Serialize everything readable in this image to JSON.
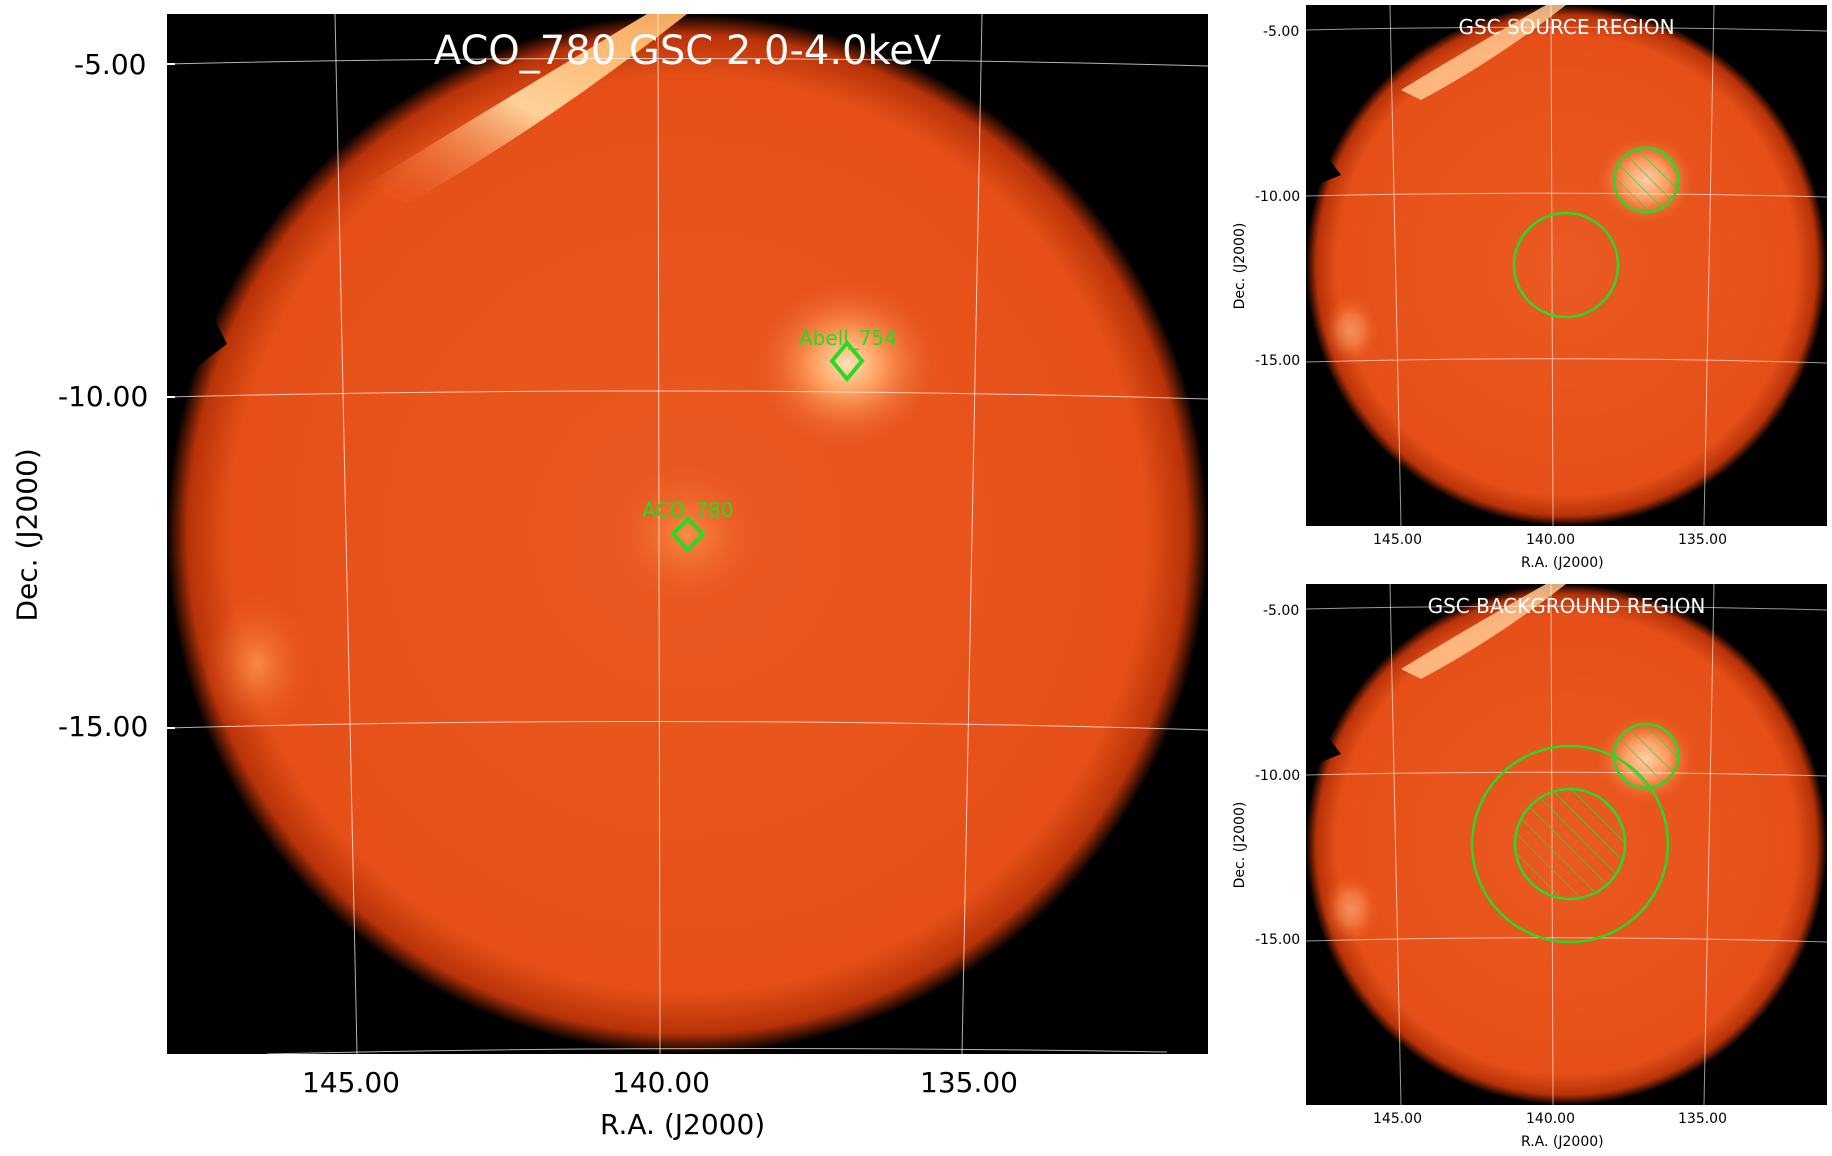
{
  "main": {
    "title": "ACO_780 GSC 2.0-4.0keV",
    "xlabel": "R.A. (J2000)",
    "ylabel": "Dec. (J2000)",
    "xticks": [
      "145.00",
      "140.00",
      "135.00"
    ],
    "yticks": [
      "-5.00",
      "-10.00",
      "-15.00"
    ],
    "sources": [
      {
        "label": "Abell_754"
      },
      {
        "label": "ACO_780"
      }
    ]
  },
  "source_panel": {
    "title": "GSC SOURCE REGION",
    "xlabel": "R.A. (J2000)",
    "ylabel": "Dec. (J2000)",
    "xticks": [
      "145.00",
      "140.00",
      "135.00"
    ],
    "yticks": [
      "-5.00",
      "-10.00",
      "-15.00"
    ]
  },
  "background_panel": {
    "title": "GSC BACKGROUND REGION",
    "xlabel": "R.A. (J2000)",
    "ylabel": "Dec. (J2000)",
    "xticks": [
      "145.00",
      "140.00",
      "135.00"
    ],
    "yticks": [
      "-5.00",
      "-10.00",
      "-15.00"
    ]
  },
  "colors": {
    "field": "#e8501a",
    "background": "#000000",
    "region": "#22dd22",
    "grid": "#ffffff"
  }
}
